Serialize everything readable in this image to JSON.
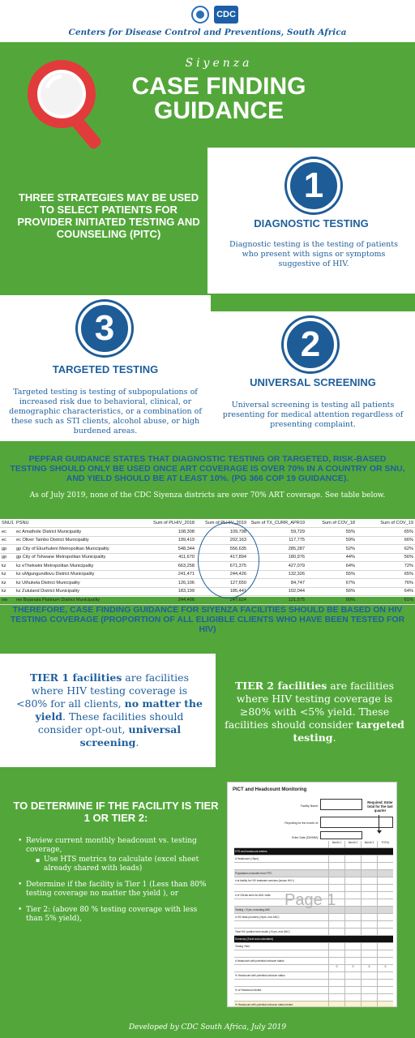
{
  "header": {
    "logo_text": "CDC",
    "org_name": "Centers for Disease Control and Preventions, South Africa"
  },
  "hero": {
    "kicker": "Siyenza",
    "title_line1": "CASE FINDING",
    "title_line2": "GUIDANCE"
  },
  "strategies": {
    "intro": "THREE STRATEGIES MAY BE USED TO SELECT PATIENTS FOR PROVIDER INITIATED TESTING AND COUNSELING (PITC)",
    "diagnostic": {
      "number": "1",
      "title": "DIAGNOSTIC TESTING",
      "desc": "Diagnostic testing is the testing of patients who present with signs or symptoms suggestive of HIV."
    },
    "targeted": {
      "number": "3",
      "title": "TARGETED TESTING",
      "desc": "Targeted testing is testing of subpopulations of increased risk due to behavioral, clinical, or demographic characteristics, or a combination of these such as STI clients, alcohol abuse, or high burdened areas."
    },
    "universal": {
      "number": "2",
      "title": "UNIVERSAL SCREENING",
      "desc": "Universal screening is testing all patients presenting for medical attention regardless of presenting complaint."
    }
  },
  "pepfar": {
    "statement": "PEPFAR GUIDANCE STATES THAT DIAGNOSTIC TESTING OR TARGETED, RISK-BASED TESTING SHOULD ONLY BE USED ONCE ART COVERAGE IS OVER 70% IN A COUNTRY OR SNU, AND YIELD SHOULD BE AT LEAST 10%. (PG 366 COP 19 GUIDANCE).",
    "as_of": "As of July 2019, none of the CDC Siyenza districts are over 70% ART coverage. See table below."
  },
  "coverage_table": {
    "headers": [
      "SNU1",
      "PSNU",
      "Sum of PLHIV_2018",
      "Sum of PLHIV_2019",
      "Sum of TX_CURR_APR19",
      "Sum of COV_18",
      "Sum of COV_19"
    ],
    "rows": [
      [
        "ec",
        "ec Amathole District Municipality",
        "108,308",
        "109,798",
        "59,729",
        "55%",
        "65%"
      ],
      [
        "ec",
        "ec Oliver Tambo District Municipality",
        "199,419",
        "202,163",
        "117,775",
        "59%",
        "66%"
      ],
      [
        "gp",
        "gp City of Ekurhuleni Metropolitan Municipality",
        "548,344",
        "556,635",
        "285,287",
        "52%",
        "62%"
      ],
      [
        "gp",
        "gp City of Tshwane Metropolitan Municipality",
        "411,670",
        "417,894",
        "180,976",
        "44%",
        "56%"
      ],
      [
        "kz",
        "kz eThekwini Metropolitan Municipality",
        "663,258",
        "671,375",
        "427,079",
        "64%",
        "72%"
      ],
      [
        "kz",
        "kz uMgungundlovu District Municipality",
        "241,471",
        "244,426",
        "132,326",
        "55%",
        "65%"
      ],
      [
        "kz",
        "kz Uthukela District Municipality",
        "126,106",
        "127,650",
        "84,747",
        "67%",
        "76%"
      ],
      [
        "kz",
        "kz Zululand District Municipality",
        "183,199",
        "185,441",
        "102,044",
        "56%",
        "64%"
      ],
      [
        "nw",
        "nw Bojanala Platinum District Municipality",
        "244,406",
        "247,624",
        "121,575",
        "50%",
        "61%"
      ]
    ]
  },
  "therefore": "THEREFORE, CASE FINDING GUIDANCE FOR SIYENZA FACILITIES SHOULD BE BASED ON HIV TESTING COVERAGE (PROPORTION OF ALL ELIGIBLE CLIENTS WHO HAVE BEEN TESTED FOR HIV)",
  "tier1": {
    "lead": "TIER 1 facilities",
    "mid": " are facilities where HIV testing coverage is <80% for all clients, ",
    "emph1": "no matter the yield",
    "tail": ". These facilities should consider opt-out, ",
    "emph2": "universal screening",
    "end": "."
  },
  "tier2": {
    "lead": "TIER 2 facilities",
    "mid": " are facilities where HIV testing coverage is ≥80% with <5% yield. These facilities should consider ",
    "emph": "targeted testing",
    "end": "."
  },
  "determine": {
    "title": "TO DETERMINE IF THE FACILITY IS TIER 1 OR TIER 2:",
    "step1": "Review current monthly headcount vs. testing coverage,",
    "step1_sub": "Use HTS metrics  to calculate (excel sheet already shared with leads)",
    "step2": "Determine if the facility is Tier 1 (Less than 80% testing coverage no matter the yield ), or",
    "step3": "Tier 2: (above 80 % testing coverage with less than 5% yield),"
  },
  "form": {
    "title": "PICT and Headcount Monitoring",
    "facility_label": "Facility Name:",
    "reporting_label": "Reporting for the month of:",
    "date_label": "Enter Date (DD/MM):",
    "required_note": "Required: Enter total for the last quarter",
    "watermark": "Page 1",
    "columns": [
      "Month 1",
      "Month 2",
      "Month 3",
      "TOTAL"
    ],
    "rows": [
      "HTS and headcount metrics",
      "# Headcount (>5yrs)",
      "",
      "Populations excluded from PITC",
      "# at facility for HIV treatment services (known HIV+)",
      "",
      "# of Clients seen for ANC visits",
      "",
      "Testing > 5 yrs, excluding ANC",
      "# HIV tests provided (>5yrs, excl ANC)",
      "",
      "Total HIV positive test results (>5 yrs, excl ANC)",
      "Summary (Excel auto-calculated)",
      "Testing Yield",
      "",
      "# Headcount with potential unknown status",
      "",
      "% Headcount with potential unknown status",
      "",
      "% of Headcount tested",
      "",
      "% Headcount with potential unknown status tested"
    ],
    "zero": "0"
  },
  "footer": "Developed by CDC South Africa, July 2019"
}
